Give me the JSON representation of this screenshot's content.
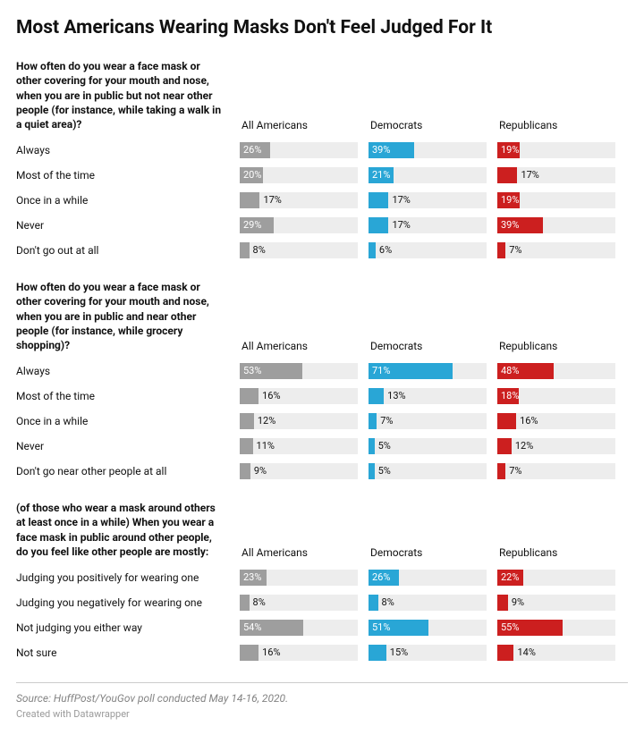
{
  "title": "Most Americans Wearing Masks Don't Feel Judged For It",
  "columns": [
    "All Americans",
    "Democrats",
    "Republicans"
  ],
  "column_colors": [
    "#9e9e9e",
    "#29a6d6",
    "#cc1f1f"
  ],
  "track_bg": "#ededed",
  "bar_max_pct": 100,
  "inside_threshold_pct": 18,
  "sections": [
    {
      "question": "How often do you wear a face mask or other covering for your mouth and nose, when you are in public but not near other people (for instance, while taking a walk in a quiet area)?",
      "rows": [
        {
          "label": "Always",
          "values": [
            26,
            39,
            19
          ]
        },
        {
          "label": "Most of the time",
          "values": [
            20,
            21,
            17
          ]
        },
        {
          "label": "Once in a while",
          "values": [
            17,
            17,
            19
          ]
        },
        {
          "label": "Never",
          "values": [
            29,
            17,
            39
          ]
        },
        {
          "label": "Don't go out at all",
          "values": [
            8,
            6,
            7
          ]
        }
      ]
    },
    {
      "question": "How often do you wear a face mask or other covering for your mouth and nose, when you are in public and near other people (for instance, while grocery shopping)?",
      "rows": [
        {
          "label": "Always",
          "values": [
            53,
            71,
            48
          ]
        },
        {
          "label": "Most of the time",
          "values": [
            16,
            13,
            18
          ]
        },
        {
          "label": "Once in a while",
          "values": [
            12,
            7,
            16
          ]
        },
        {
          "label": "Never",
          "values": [
            11,
            5,
            12
          ]
        },
        {
          "label": "Don't go near other people at all",
          "values": [
            9,
            5,
            7
          ]
        }
      ]
    },
    {
      "question": "(of those who wear a mask around others at least once in a while) When you wear a face mask in public around other people, do you feel like other people are mostly:",
      "rows": [
        {
          "label": "Judging you positively for wearing one",
          "values": [
            23,
            26,
            22
          ]
        },
        {
          "label": "Judging you negatively for wearing one",
          "values": [
            8,
            8,
            9
          ]
        },
        {
          "label": "Not judging you either way",
          "values": [
            54,
            51,
            55
          ]
        },
        {
          "label": "Not sure",
          "values": [
            16,
            15,
            14
          ]
        }
      ]
    }
  ],
  "source": "Source: HuffPost/YouGov poll conducted May 14-16, 2020.",
  "credit": "Created with Datawrapper"
}
